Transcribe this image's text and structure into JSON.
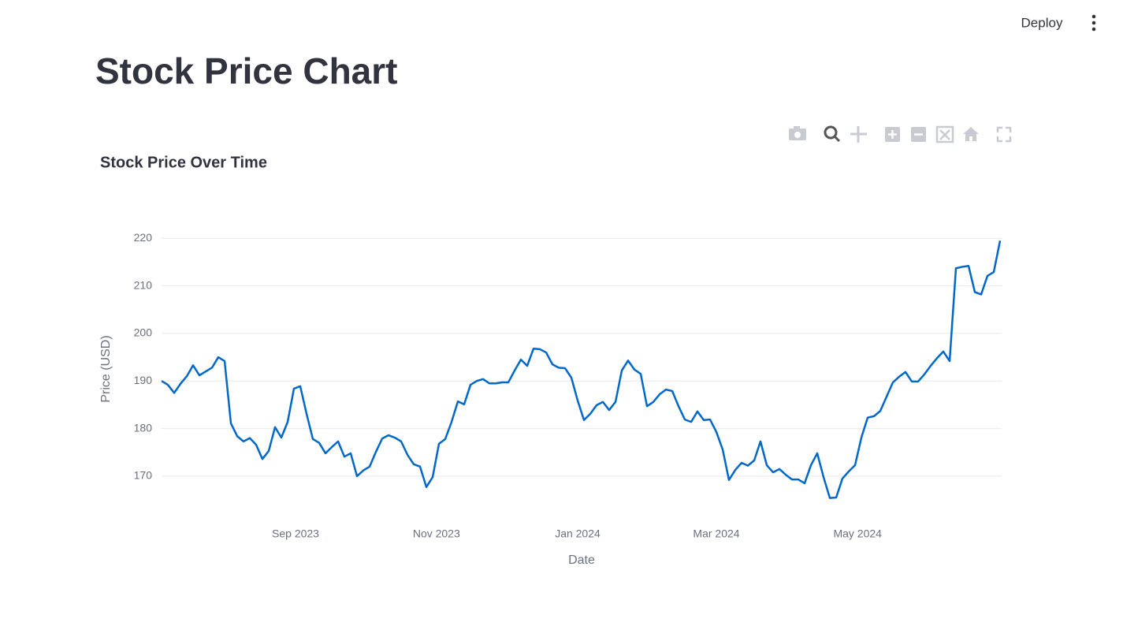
{
  "header": {
    "deploy": "Deploy"
  },
  "page": {
    "title": "Stock Price Chart"
  },
  "chart_data": {
    "type": "line",
    "title": "Stock Price Over Time",
    "x_label": "Date",
    "y_label": "Price (USD)",
    "color": "#0068c9",
    "grid": true,
    "values": [
      190.0,
      189.2,
      187.5,
      189.4,
      191.0,
      193.3,
      191.2,
      192.0,
      192.8,
      195.0,
      194.2,
      181.1,
      178.4,
      177.3,
      178.0,
      176.6,
      173.6,
      175.3,
      180.3,
      178.1,
      181.4,
      188.4,
      188.9,
      183.1,
      177.8,
      177.0,
      174.8,
      176.1,
      177.3,
      174.1,
      174.8,
      170.0,
      171.2,
      172.0,
      175.1,
      177.9,
      178.6,
      178.1,
      177.3,
      174.5,
      172.5,
      172.0,
      167.7,
      169.8,
      176.8,
      177.8,
      181.4,
      185.7,
      185.1,
      189.2,
      190.0,
      190.4,
      189.5,
      189.5,
      189.7,
      189.7,
      192.2,
      194.5,
      193.2,
      196.8,
      196.7,
      196.0,
      193.5,
      192.8,
      192.7,
      190.7,
      185.9,
      181.8,
      183.1,
      184.9,
      185.6,
      183.9,
      185.6,
      192.2,
      194.3,
      192.4,
      191.5,
      184.7,
      185.6,
      187.2,
      188.2,
      187.9,
      184.7,
      181.9,
      181.4,
      183.6,
      181.8,
      181.9,
      179.3,
      175.6,
      169.2,
      171.3,
      172.8,
      172.2,
      173.3,
      177.3,
      172.3,
      170.8,
      171.5,
      170.3,
      169.3,
      169.3,
      168.5,
      172.3,
      174.8,
      169.8,
      165.4,
      165.5,
      169.5,
      171.0,
      172.3,
      178.1,
      182.3,
      182.6,
      183.7,
      186.7,
      189.7,
      190.9,
      191.9,
      189.9,
      189.9,
      191.4,
      193.2,
      194.8,
      196.2,
      194.2,
      213.7,
      214.0,
      214.2,
      208.7,
      208.2,
      212.1,
      212.9,
      219.5
    ],
    "xlim": [
      0,
      133
    ],
    "xticks": [
      {
        "value": 21.25,
        "label": "Sep 2023"
      },
      {
        "value": 43.6,
        "label": "Nov 2023"
      },
      {
        "value": 66,
        "label": "Jan 2024"
      },
      {
        "value": 88,
        "label": "Mar 2024"
      },
      {
        "value": 110.4,
        "label": "May 2024"
      }
    ],
    "ylim": [
      161.2,
      227.5
    ],
    "yticks": [
      170,
      180,
      190,
      200,
      210,
      220
    ]
  }
}
